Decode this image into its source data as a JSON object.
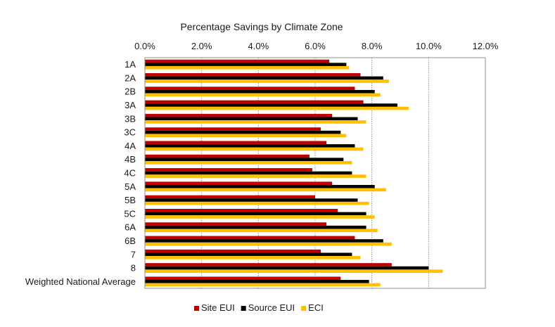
{
  "chart_data": {
    "type": "bar",
    "orientation": "horizontal",
    "title": "Percentage Savings by Climate Zone",
    "xlabel": "",
    "ylabel": "",
    "x_axis_position": "top",
    "xlim": [
      0,
      12
    ],
    "xticks": [
      "0.0%",
      "2.0%",
      "4.0%",
      "6.0%",
      "8.0%",
      "10.0%",
      "12.0%"
    ],
    "grid": "vertical",
    "legend_position": "bottom",
    "categories": [
      "1A",
      "2A",
      "2B",
      "3A",
      "3B",
      "3C",
      "4A",
      "4B",
      "4C",
      "5A",
      "5B",
      "5C",
      "6A",
      "6B",
      "7",
      "8",
      "Weighted National Average"
    ],
    "series": [
      {
        "name": "Site EUI",
        "color": "#C00000",
        "values": [
          6.5,
          7.6,
          7.4,
          7.7,
          6.6,
          6.2,
          6.4,
          5.8,
          5.9,
          6.6,
          6.0,
          6.8,
          6.4,
          7.4,
          6.2,
          8.7,
          6.9
        ]
      },
      {
        "name": "Source EUI",
        "color": "#000000",
        "values": [
          7.1,
          8.4,
          8.1,
          8.9,
          7.5,
          6.9,
          7.4,
          7.0,
          7.3,
          8.1,
          7.5,
          7.8,
          7.8,
          8.4,
          7.3,
          10.0,
          7.9
        ]
      },
      {
        "name": "ECI",
        "color": "#FFC000",
        "values": [
          7.2,
          8.6,
          8.3,
          9.3,
          7.8,
          7.1,
          7.7,
          7.3,
          7.8,
          8.5,
          7.9,
          8.1,
          8.2,
          8.7,
          7.6,
          10.5,
          8.3
        ]
      }
    ]
  }
}
